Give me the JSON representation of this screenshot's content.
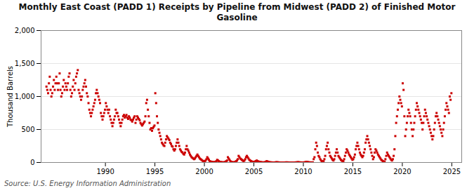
{
  "chart_data": {
    "type": "scatter",
    "title": "Monthly East Coast (PADD 1) Receipts by Pipeline from Midwest (PADD 2) of Finished Motor\nGasoline",
    "ylabel": "Thousand Barrels",
    "source": "Source: U.S. Energy Information Administration",
    "color": "#cc0000",
    "marker": "square",
    "grid": true,
    "xlim": [
      1983.5,
      2026.0
    ],
    "xticks": [
      1990,
      1995,
      2000,
      2005,
      2010,
      2015,
      2020,
      2025
    ],
    "ylim": [
      0,
      2000
    ],
    "yticks": [
      0,
      500,
      {
        "value": 1000,
        "label": "1,000"
      },
      {
        "value": 1500,
        "label": "1,500"
      },
      {
        "value": 2000,
        "label": "2,000"
      }
    ],
    "x": [
      1984.0416666666667,
      1984.125,
      1984.2083333333333,
      1984.2916666666667,
      1984.375,
      1984.4583333333333,
      1984.5416666666667,
      1984.625,
      1984.7083333333333,
      1984.7916666666667,
      1984.875,
      1984.9583333333333,
      1985.0416666666667,
      1985.125,
      1985.2083333333333,
      1985.2916666666667,
      1985.375,
      1985.4583333333333,
      1985.5416666666667,
      1985.625,
      1985.7083333333333,
      1985.7916666666667,
      1985.875,
      1985.9583333333333,
      1986.0416666666667,
      1986.125,
      1986.2083333333333,
      1986.2916666666667,
      1986.375,
      1986.4583333333333,
      1986.5416666666667,
      1986.625,
      1986.7083333333333,
      1986.7916666666667,
      1986.875,
      1986.9583333333333,
      1987.0416666666667,
      1987.125,
      1987.2083333333333,
      1987.2916666666667,
      1987.375,
      1987.4583333333333,
      1987.5416666666667,
      1987.625,
      1987.7083333333333,
      1987.7916666666667,
      1987.875,
      1987.9583333333333,
      1988.0416666666667,
      1988.125,
      1988.2083333333333,
      1988.2916666666667,
      1988.375,
      1988.4583333333333,
      1988.5416666666667,
      1988.625,
      1988.7083333333333,
      1988.7916666666667,
      1988.875,
      1988.9583333333333,
      1989.0416666666667,
      1989.125,
      1989.2083333333333,
      1989.2916666666667,
      1989.375,
      1989.4583333333333,
      1989.5416666666667,
      1989.625,
      1989.7083333333333,
      1989.7916666666667,
      1989.875,
      1989.9583333333333,
      1990.0416666666667,
      1990.125,
      1990.2083333333333,
      1990.2916666666667,
      1990.375,
      1990.4583333333333,
      1990.5416666666667,
      1990.625,
      1990.7083333333333,
      1990.7916666666667,
      1990.875,
      1990.9583333333333,
      1991.0416666666667,
      1991.125,
      1991.2083333333333,
      1991.2916666666667,
      1991.375,
      1991.4583333333333,
      1991.5416666666667,
      1991.625,
      1991.7083333333333,
      1991.7916666666667,
      1991.875,
      1991.9583333333333,
      1992.0416666666667,
      1992.125,
      1992.2083333333333,
      1992.2916666666667,
      1992.375,
      1992.4583333333333,
      1992.5416666666667,
      1992.625,
      1992.7083333333333,
      1992.7916666666667,
      1992.875,
      1992.9583333333333,
      1993.0416666666667,
      1993.125,
      1993.2083333333333,
      1993.2916666666667,
      1993.375,
      1993.4583333333333,
      1993.5416666666667,
      1993.625,
      1993.7083333333333,
      1993.7916666666667,
      1993.875,
      1993.9583333333333,
      1994.0416666666667,
      1994.125,
      1994.2083333333333,
      1994.2916666666667,
      1994.375,
      1994.4583333333333,
      1994.5416666666667,
      1994.625,
      1994.7083333333333,
      1994.7916666666667,
      1994.875,
      1994.9583333333333,
      1995.0416666666667,
      1995.125,
      1995.2083333333333,
      1995.2916666666667,
      1995.375,
      1995.4583333333333,
      1995.5416666666667,
      1995.625,
      1995.7083333333333,
      1995.7916666666667,
      1995.875,
      1995.9583333333333,
      1996.0416666666667,
      1996.125,
      1996.2083333333333,
      1996.2916666666667,
      1996.375,
      1996.4583333333333,
      1996.5416666666667,
      1996.625,
      1996.7083333333333,
      1996.7916666666667,
      1996.875,
      1996.9583333333333,
      1997.0416666666667,
      1997.125,
      1997.2083333333333,
      1997.2916666666667,
      1997.375,
      1997.4583333333333,
      1997.5416666666667,
      1997.625,
      1997.7083333333333,
      1997.7916666666667,
      1997.875,
      1997.9583333333333,
      1998.0416666666667,
      1998.125,
      1998.2083333333333,
      1998.2916666666667,
      1998.375,
      1998.4583333333333,
      1998.5416666666667,
      1998.625,
      1998.7083333333333,
      1998.7916666666667,
      1998.875,
      1998.9583333333333,
      1999.0416666666667,
      1999.125,
      1999.2083333333333,
      1999.2916666666667,
      1999.375,
      1999.4583333333333,
      1999.5416666666667,
      1999.625,
      1999.7083333333333,
      1999.7916666666667,
      1999.875,
      1999.9583333333333,
      2000.0416666666667,
      2000.125,
      2000.2083333333333,
      2000.2916666666667,
      2000.375,
      2000.4583333333333,
      2000.5416666666667,
      2000.625,
      2000.7083333333333,
      2000.7916666666667,
      2000.875,
      2000.9583333333333,
      2001.0416666666667,
      2001.125,
      2001.2083333333333,
      2001.2916666666667,
      2001.375,
      2001.4583333333333,
      2001.5416666666667,
      2001.625,
      2001.7083333333333,
      2001.7916666666667,
      2001.875,
      2001.9583333333333,
      2002.0416666666667,
      2002.125,
      2002.2083333333333,
      2002.2916666666667,
      2002.375,
      2002.4583333333333,
      2002.5416666666667,
      2002.625,
      2002.7083333333333,
      2002.7916666666667,
      2002.875,
      2002.9583333333333,
      2003.0416666666667,
      2003.125,
      2003.2083333333333,
      2003.2916666666667,
      2003.375,
      2003.4583333333333,
      2003.5416666666667,
      2003.625,
      2003.7083333333333,
      2003.7916666666667,
      2003.875,
      2003.9583333333333,
      2004.0416666666667,
      2004.125,
      2004.2083333333333,
      2004.2916666666667,
      2004.375,
      2004.4583333333333,
      2004.5416666666667,
      2004.625,
      2004.7083333333333,
      2004.7916666666667,
      2004.875,
      2004.9583333333333,
      2005.0416666666667,
      2005.125,
      2005.2083333333333,
      2005.2916666666667,
      2005.375,
      2005.4583333333333,
      2005.5416666666667,
      2005.625,
      2005.7083333333333,
      2005.7916666666667,
      2005.875,
      2005.9583333333333,
      2006.0416666666667,
      2006.125,
      2006.2083333333333,
      2006.2916666666667,
      2006.375,
      2006.4583333333333,
      2006.5416666666667,
      2006.625,
      2006.7083333333333,
      2006.7916666666667,
      2006.875,
      2006.9583333333333,
      2007.0416666666667,
      2007.125,
      2007.2083333333333,
      2007.2916666666667,
      2007.375,
      2007.4583333333333,
      2007.5416666666667,
      2007.625,
      2007.7083333333333,
      2007.7916666666667,
      2007.875,
      2007.9583333333333,
      2008.0416666666667,
      2008.125,
      2008.2083333333333,
      2008.2916666666667,
      2008.375,
      2008.4583333333333,
      2008.5416666666667,
      2008.625,
      2008.7083333333333,
      2008.7916666666667,
      2008.875,
      2008.9583333333333,
      2009.0416666666667,
      2009.125,
      2009.2083333333333,
      2009.2916666666667,
      2009.375,
      2009.4583333333333,
      2009.5416666666667,
      2009.625,
      2009.7083333333333,
      2009.7916666666667,
      2009.875,
      2009.9583333333333,
      2010.0416666666667,
      2010.125,
      2010.2083333333333,
      2010.2916666666667,
      2010.375,
      2010.4583333333333,
      2010.5416666666667,
      2010.625,
      2010.7083333333333,
      2010.7916666666667,
      2010.875,
      2010.9583333333333,
      2011.0416666666667,
      2011.125,
      2011.2083333333333,
      2011.2916666666667,
      2011.375,
      2011.4583333333333,
      2011.5416666666667,
      2011.625,
      2011.7083333333333,
      2011.7916666666667,
      2011.875,
      2011.9583333333333,
      2012.0416666666667,
      2012.125,
      2012.2083333333333,
      2012.2916666666667,
      2012.375,
      2012.4583333333333,
      2012.5416666666667,
      2012.625,
      2012.7083333333333,
      2012.7916666666667,
      2012.875,
      2012.9583333333333,
      2013.0416666666667,
      2013.125,
      2013.2083333333333,
      2013.2916666666667,
      2013.375,
      2013.4583333333333,
      2013.5416666666667,
      2013.625,
      2013.7083333333333,
      2013.7916666666667,
      2013.875,
      2013.9583333333333,
      2014.0416666666667,
      2014.125,
      2014.2083333333333,
      2014.2916666666667,
      2014.375,
      2014.4583333333333,
      2014.5416666666667,
      2014.625,
      2014.7083333333333,
      2014.7916666666667,
      2014.875,
      2014.9583333333333,
      2015.0416666666667,
      2015.125,
      2015.2083333333333,
      2015.2916666666667,
      2015.375,
      2015.4583333333333,
      2015.5416666666667,
      2015.625,
      2015.7083333333333,
      2015.7916666666667,
      2015.875,
      2015.9583333333333,
      2016.0416666666667,
      2016.125,
      2016.2083333333333,
      2016.2916666666667,
      2016.375,
      2016.4583333333333,
      2016.5416666666667,
      2016.625,
      2016.7083333333333,
      2016.7916666666667,
      2016.875,
      2016.9583333333333,
      2017.0416666666667,
      2017.125,
      2017.2083333333333,
      2017.2916666666667,
      2017.375,
      2017.4583333333333,
      2017.5416666666667,
      2017.625,
      2017.7083333333333,
      2017.7916666666667,
      2017.875,
      2017.9583333333333,
      2018.0416666666667,
      2018.125,
      2018.2083333333333,
      2018.2916666666667,
      2018.375,
      2018.4583333333333,
      2018.5416666666667,
      2018.625,
      2018.7083333333333,
      2018.7916666666667,
      2018.875,
      2018.9583333333333,
      2019.0416666666667,
      2019.125,
      2019.2083333333333,
      2019.2916666666667,
      2019.375,
      2019.4583333333333,
      2019.5416666666667,
      2019.625,
      2019.7083333333333,
      2019.7916666666667,
      2019.875,
      2019.9583333333333,
      2020.0416666666667,
      2020.125,
      2020.2083333333333,
      2020.2916666666667,
      2020.375,
      2020.4583333333333,
      2020.5416666666667,
      2020.625,
      2020.7083333333333,
      2020.7916666666667,
      2020.875,
      2020.9583333333333,
      2021.0416666666667,
      2021.125,
      2021.2083333333333,
      2021.2916666666667,
      2021.375,
      2021.4583333333333,
      2021.5416666666667,
      2021.625,
      2021.7083333333333,
      2021.7916666666667,
      2021.875,
      2021.9583333333333,
      2022.0416666666667,
      2022.125,
      2022.2083333333333,
      2022.2916666666667,
      2022.375,
      2022.4583333333333,
      2022.5416666666667,
      2022.625,
      2022.7083333333333,
      2022.7916666666667,
      2022.875,
      2022.9583333333333,
      2023.0416666666667,
      2023.125,
      2023.2083333333333,
      2023.2916666666667,
      2023.375,
      2023.4583333333333,
      2023.5416666666667,
      2023.625,
      2023.7083333333333,
      2023.7916666666667,
      2023.875,
      2023.9583333333333,
      2024.0416666666667,
      2024.125,
      2024.2083333333333,
      2024.2916666666667,
      2024.375,
      2024.4583333333333,
      2024.5416666666667,
      2024.625,
      2024.7083333333333,
      2024.7916666666667,
      2024.875,
      2024.9583333333333
    ],
    "values": [
      1150,
      1100,
      1050,
      1200,
      1300,
      1100,
      1000,
      1050,
      1150,
      1250,
      1100,
      1200,
      1300,
      1200,
      1100,
      1200,
      1350,
      1100,
      1000,
      1050,
      1150,
      1250,
      1100,
      1200,
      1150,
      1100,
      1200,
      1300,
      1350,
      1100,
      1000,
      1050,
      1150,
      1250,
      1100,
      1200,
      1300,
      1350,
      1400,
      1100,
      1050,
      1000,
      950,
      1000,
      1100,
      1150,
      1200,
      1250,
      1150,
      1050,
      1000,
      900,
      800,
      750,
      700,
      750,
      800,
      850,
      900,
      950,
      1050,
      1100,
      1050,
      1000,
      950,
      900,
      750,
      700,
      650,
      700,
      750,
      800,
      900,
      850,
      800,
      750,
      800,
      700,
      650,
      600,
      550,
      600,
      650,
      700,
      800,
      750,
      750,
      700,
      650,
      600,
      550,
      600,
      650,
      700,
      720,
      680,
      700,
      720,
      680,
      660,
      700,
      680,
      650,
      640,
      620,
      650,
      680,
      700,
      600,
      650,
      700,
      680,
      660,
      640,
      600,
      580,
      560,
      580,
      600,
      620,
      700,
      900,
      950,
      800,
      700,
      600,
      500,
      520,
      480,
      520,
      540,
      560,
      1050,
      900,
      700,
      600,
      500,
      450,
      400,
      350,
      300,
      280,
      260,
      250,
      300,
      350,
      400,
      380,
      360,
      340,
      300,
      280,
      250,
      240,
      200,
      180,
      200,
      250,
      300,
      350,
      300,
      250,
      200,
      180,
      160,
      150,
      130,
      120,
      150,
      200,
      250,
      200,
      180,
      150,
      120,
      100,
      80,
      70,
      60,
      50,
      60,
      80,
      100,
      120,
      100,
      80,
      60,
      50,
      40,
      30,
      20,
      15,
      20,
      30,
      50,
      80,
      60,
      40,
      20,
      15,
      10,
      8,
      5,
      3,
      5,
      10,
      20,
      40,
      30,
      20,
      10,
      8,
      5,
      3,
      2,
      1,
      5,
      10,
      20,
      30,
      80,
      60,
      40,
      20,
      10,
      5,
      3,
      2,
      5,
      10,
      20,
      30,
      50,
      100,
      80,
      60,
      50,
      40,
      30,
      20,
      30,
      50,
      80,
      100,
      80,
      60,
      40,
      30,
      20,
      15,
      10,
      8,
      10,
      15,
      20,
      30,
      20,
      15,
      10,
      8,
      5,
      3,
      2,
      1,
      2,
      5,
      10,
      20,
      15,
      10,
      5,
      3,
      2,
      1,
      1,
      0,
      0,
      1,
      2,
      5,
      3,
      2,
      1,
      0,
      0,
      0,
      0,
      0,
      0,
      0,
      1,
      2,
      1,
      1,
      0,
      0,
      0,
      0,
      0,
      0,
      0,
      0,
      1,
      2,
      3,
      5,
      3,
      2,
      1,
      1,
      0,
      0,
      1,
      2,
      5,
      10,
      8,
      5,
      3,
      2,
      1,
      1,
      1,
      1,
      50,
      80,
      200,
      300,
      250,
      150,
      100,
      80,
      50,
      30,
      20,
      10,
      20,
      50,
      100,
      200,
      250,
      300,
      200,
      150,
      100,
      80,
      60,
      40,
      30,
      50,
      100,
      150,
      200,
      150,
      100,
      80,
      60,
      40,
      30,
      20,
      20,
      50,
      100,
      150,
      200,
      180,
      150,
      120,
      100,
      80,
      60,
      40,
      50,
      80,
      120,
      200,
      250,
      300,
      250,
      200,
      150,
      120,
      100,
      80,
      100,
      150,
      200,
      300,
      350,
      400,
      350,
      300,
      250,
      200,
      150,
      100,
      50,
      80,
      150,
      200,
      180,
      150,
      120,
      100,
      80,
      60,
      40,
      30,
      20,
      10,
      15,
      50,
      100,
      150,
      120,
      100,
      80,
      60,
      40,
      30,
      50,
      100,
      200,
      400,
      600,
      700,
      800,
      900,
      1000,
      950,
      900,
      850,
      1200,
      1100,
      700,
      400,
      500,
      600,
      700,
      800,
      750,
      700,
      600,
      500,
      400,
      500,
      600,
      700,
      800,
      900,
      850,
      800,
      750,
      700,
      650,
      600,
      500,
      600,
      700,
      800,
      750,
      700,
      650,
      600,
      550,
      500,
      450,
      400,
      350,
      400,
      500,
      600,
      700,
      750,
      700,
      650,
      600,
      550,
      500,
      450,
      400,
      500,
      600,
      700,
      800,
      900,
      850,
      800,
      750,
      1000,
      950,
      1050
    ]
  }
}
